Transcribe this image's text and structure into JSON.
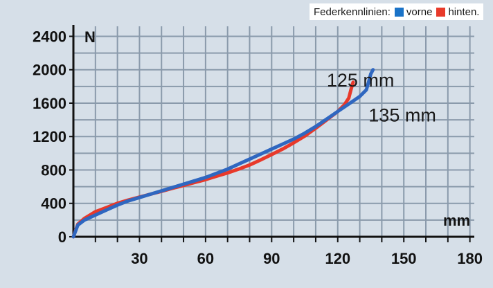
{
  "legend": {
    "title": "Federkennlinien:",
    "items": [
      {
        "label": "vorne",
        "color": "#1a73c8"
      },
      {
        "label": "hinten.",
        "color": "#e83a2a"
      }
    ]
  },
  "chart_data": {
    "type": "line",
    "title": "",
    "xlabel": "mm",
    "ylabel": "N",
    "xlim": [
      0,
      182
    ],
    "ylim": [
      0,
      2520
    ],
    "xticks": [
      30,
      60,
      90,
      120,
      150,
      180
    ],
    "yticks": [
      0,
      400,
      800,
      1200,
      1600,
      2000,
      2400
    ],
    "grid": true,
    "legend_position": "top-right",
    "series": [
      {
        "name": "vorne",
        "color": "#2f67c0",
        "points": [
          [
            0,
            0
          ],
          [
            2,
            140
          ],
          [
            5,
            200
          ],
          [
            10,
            260
          ],
          [
            15,
            320
          ],
          [
            20,
            380
          ],
          [
            25,
            430
          ],
          [
            30,
            470
          ],
          [
            35,
            510
          ],
          [
            40,
            550
          ],
          [
            45,
            590
          ],
          [
            50,
            630
          ],
          [
            55,
            670
          ],
          [
            60,
            710
          ],
          [
            65,
            760
          ],
          [
            70,
            810
          ],
          [
            75,
            870
          ],
          [
            80,
            930
          ],
          [
            85,
            990
          ],
          [
            90,
            1050
          ],
          [
            95,
            1110
          ],
          [
            100,
            1170
          ],
          [
            105,
            1240
          ],
          [
            110,
            1320
          ],
          [
            115,
            1410
          ],
          [
            120,
            1500
          ],
          [
            125,
            1590
          ],
          [
            130,
            1680
          ],
          [
            133,
            1760
          ],
          [
            134,
            1850
          ],
          [
            135,
            1950
          ],
          [
            136,
            2000
          ]
        ]
      },
      {
        "name": "hinten.",
        "color": "#e8392a",
        "points": [
          [
            0,
            0
          ],
          [
            2,
            150
          ],
          [
            5,
            220
          ],
          [
            10,
            300
          ],
          [
            15,
            350
          ],
          [
            20,
            400
          ],
          [
            25,
            440
          ],
          [
            30,
            475
          ],
          [
            35,
            510
          ],
          [
            40,
            545
          ],
          [
            45,
            580
          ],
          [
            50,
            615
          ],
          [
            55,
            650
          ],
          [
            60,
            685
          ],
          [
            65,
            725
          ],
          [
            70,
            765
          ],
          [
            75,
            810
          ],
          [
            80,
            860
          ],
          [
            85,
            920
          ],
          [
            90,
            985
          ],
          [
            95,
            1050
          ],
          [
            100,
            1125
          ],
          [
            105,
            1205
          ],
          [
            110,
            1300
          ],
          [
            115,
            1400
          ],
          [
            120,
            1500
          ],
          [
            123,
            1580
          ],
          [
            125,
            1660
          ],
          [
            126,
            1760
          ],
          [
            127,
            1850
          ]
        ]
      }
    ],
    "annotations": [
      {
        "text": "125 mm",
        "x": 115,
        "y": 1800
      },
      {
        "text": "135 mm",
        "x": 134,
        "y": 1380
      }
    ]
  }
}
